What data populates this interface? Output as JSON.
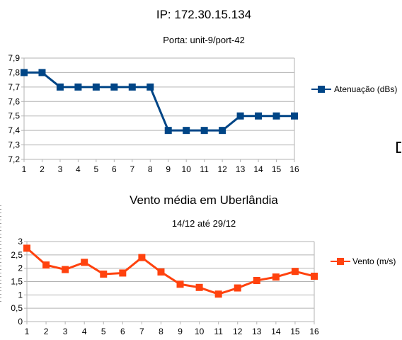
{
  "chart_data": [
    {
      "type": "line",
      "title": "IP: 172.30.15.134",
      "subtitle": "Porta: unit-9/port-42",
      "categories": [
        "1",
        "2",
        "3",
        "4",
        "5",
        "6",
        "7",
        "8",
        "9",
        "10",
        "11",
        "12",
        "13",
        "14",
        "15",
        "16"
      ],
      "series": [
        {
          "name": "Atenuação (dBs)",
          "color": "#004586",
          "marker": "square",
          "values": [
            7.8,
            7.8,
            7.7,
            7.7,
            7.7,
            7.7,
            7.7,
            7.7,
            7.4,
            7.4,
            7.4,
            7.4,
            7.5,
            7.5,
            7.5,
            7.5
          ]
        }
      ],
      "ylim": [
        7.2,
        7.9
      ],
      "yticks": [
        "7,2",
        "7,3",
        "7,4",
        "7,5",
        "7,6",
        "7,7",
        "7,8",
        "7,9"
      ],
      "grid": true,
      "legend": "right"
    },
    {
      "type": "line",
      "title": "Vento média em Uberlândia",
      "subtitle": "14/12 até 29/12",
      "categories": [
        "1",
        "2",
        "3",
        "4",
        "5",
        "6",
        "7",
        "8",
        "9",
        "10",
        "11",
        "12",
        "13",
        "14",
        "15",
        "16"
      ],
      "series": [
        {
          "name": "Vento (m/s)",
          "color": "#ff420e",
          "marker": "square",
          "values": [
            2.75,
            2.12,
            1.95,
            2.22,
            1.78,
            1.82,
            2.4,
            1.86,
            1.4,
            1.28,
            1.03,
            1.26,
            1.54,
            1.67,
            1.88,
            1.7
          ]
        }
      ],
      "ylim": [
        0,
        3
      ],
      "yticks": [
        "0",
        "0,5",
        "1",
        "1,5",
        "2",
        "2,5",
        "3"
      ],
      "grid": true,
      "legend": "right"
    }
  ]
}
